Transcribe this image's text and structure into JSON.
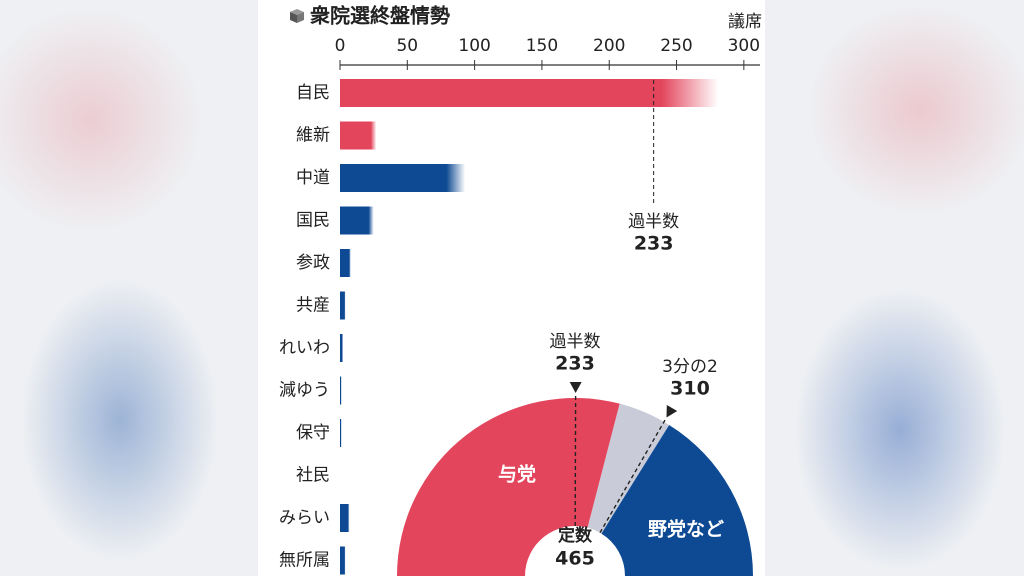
{
  "chart_data": [
    {
      "type": "bar",
      "title": "衆院選終盤情勢",
      "unit": "議席",
      "categories": [
        "自民",
        "維新",
        "中道",
        "国民",
        "参政",
        "共産",
        "れいわ",
        "減ゆう",
        "保守",
        "社民",
        "みらい",
        "無所属"
      ],
      "values": [
        281,
        27,
        93,
        25,
        8,
        4,
        2,
        1,
        1,
        0,
        7,
        4
      ],
      "colors": [
        "#e3455c",
        "#e3455c",
        "#0e4a93",
        "#0e4a93",
        "#0e4a93",
        "#0e4a93",
        "#0e4a93",
        "#0e4a93",
        "#0e4a93",
        "#0e4a93",
        "#0e4a93",
        "#0e4a93"
      ],
      "xlim": [
        0,
        312
      ],
      "xticks": [
        0,
        50,
        100,
        150,
        200,
        250,
        300
      ],
      "annotation": {
        "label": "過半数",
        "value": 233
      }
    },
    {
      "type": "semicircle",
      "total_label": "定数",
      "total": 465,
      "series": [
        {
          "name": "与党",
          "value": 270,
          "color": "#e3455c"
        },
        {
          "name": "野党など",
          "value": 150,
          "color": "#0e4a93"
        }
      ],
      "uncertain_color": "#c9ccd8",
      "annotations": [
        {
          "label": "過半数",
          "value": 233
        },
        {
          "label": "3分の2",
          "value": 310
        }
      ]
    }
  ]
}
